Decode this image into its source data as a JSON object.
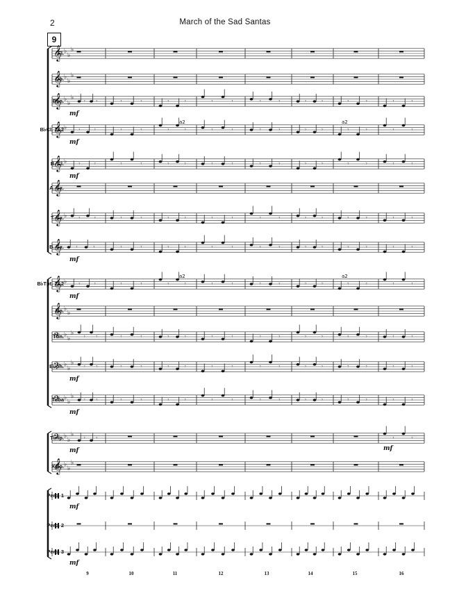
{
  "page": {
    "number": "2",
    "title": "March of the Sad Santas",
    "rehearsal_mark": "9"
  },
  "instruments": [
    {
      "label": "Fl.",
      "clef": "treble",
      "key": "eb"
    },
    {
      "label": "Ob.",
      "clef": "treble",
      "key": "eb"
    },
    {
      "label": "Bsn.",
      "clef": "treble",
      "key": "eb"
    },
    {
      "label": "B♭Cl. 1&2",
      "clef": "treble",
      "key": "f"
    },
    {
      "label": "B. Cl.",
      "clef": "treble",
      "key": "f"
    },
    {
      "label": "A. Sx.",
      "clef": "treble",
      "key": "none"
    },
    {
      "label": "T. Sx.",
      "clef": "treble",
      "key": "f"
    },
    {
      "label": "B. Sx.",
      "clef": "treble",
      "key": "none"
    },
    {
      "label": "B♭Tpt. 1&2",
      "clef": "treble",
      "key": "f"
    },
    {
      "label": "Hn.",
      "clef": "treble",
      "key": "bb"
    },
    {
      "label": "Tbn.",
      "clef": "bass",
      "key": "eb"
    },
    {
      "label": "Euph.",
      "clef": "bass",
      "key": "eb"
    },
    {
      "label": "Tuba",
      "clef": "bass",
      "key": "eb"
    },
    {
      "label": "Timp.",
      "clef": "bass",
      "key": "eb"
    },
    {
      "label": "Xylo.",
      "clef": "treble",
      "key": "eb"
    },
    {
      "label": "Perc. 1",
      "clef": "perc",
      "key": "none"
    },
    {
      "label": "Perc. 2",
      "clef": "perc",
      "key": "none"
    },
    {
      "label": "Perc. 3",
      "clef": "perc",
      "key": "none"
    }
  ],
  "dynamics": {
    "marking": "mf",
    "a2": "a2"
  },
  "measure_numbers": [
    "9",
    "10",
    "11",
    "12",
    "13",
    "14",
    "15",
    "16"
  ]
}
